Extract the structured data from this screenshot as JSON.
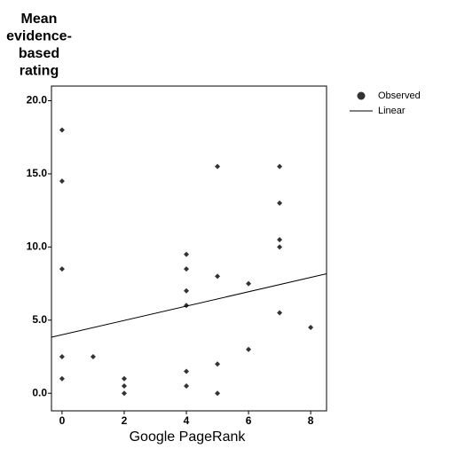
{
  "chart_data": {
    "type": "scatter",
    "y_label": [
      "Mean",
      "evidence-",
      "based",
      "rating"
    ],
    "x_label": "Google PageRank",
    "series": [
      {
        "name": "Observed",
        "color": "#333333",
        "x": [
          0,
          0,
          0,
          0,
          0,
          1,
          2,
          2,
          2,
          4,
          4,
          4,
          4,
          4,
          4,
          5,
          5,
          5,
          5,
          6,
          6,
          7,
          7,
          7,
          7,
          7,
          8
        ],
        "values": [
          18.0,
          14.5,
          8.5,
          2.5,
          1.0,
          2.5,
          1.0,
          0.5,
          0.0,
          9.5,
          8.5,
          7.0,
          6.0,
          1.5,
          0.5,
          15.5,
          8.0,
          2.0,
          0.0,
          7.5,
          3.0,
          15.5,
          13.0,
          10.5,
          10.0,
          5.5,
          4.5
        ]
      }
    ],
    "fit": {
      "name": "Linear",
      "color": "#000000",
      "intercept": 4.0,
      "slope": 0.49
    },
    "xlim": [
      -0.34,
      8.51
    ],
    "ylim": [
      -1.2,
      21.0
    ],
    "xticks": [
      0,
      2,
      4,
      6,
      8
    ],
    "yticks": [
      {
        "value": 0,
        "label": "0.0"
      },
      {
        "value": 5,
        "label": "5.0"
      },
      {
        "value": 10,
        "label": "10.0"
      },
      {
        "value": 15,
        "label": "15.0"
      },
      {
        "value": 20,
        "label": "20.0"
      }
    ]
  }
}
